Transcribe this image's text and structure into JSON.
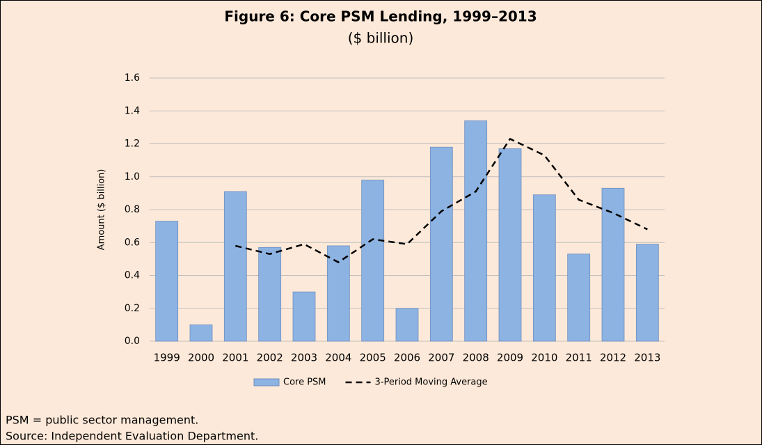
{
  "chart_data": {
    "type": "bar",
    "title": "Figure 6: Core PSM Lending, 1999–2013",
    "subtitle": "($ billion)",
    "y_label": "Amount ($ billion)",
    "categories": [
      "1999",
      "2000",
      "2001",
      "2002",
      "2003",
      "2004",
      "2005",
      "2006",
      "2007",
      "2008",
      "2009",
      "2010",
      "2011",
      "2012",
      "2013"
    ],
    "series": [
      {
        "name": "Core PSM",
        "type": "bar",
        "color": "#8db3e2",
        "values": [
          0.73,
          0.1,
          0.91,
          0.57,
          0.3,
          0.58,
          0.98,
          0.2,
          1.18,
          1.34,
          1.17,
          0.89,
          0.53,
          0.93,
          0.59
        ]
      },
      {
        "name": "3-Period Moving Average",
        "type": "line",
        "color": "#000000",
        "values": [
          null,
          null,
          0.58,
          0.53,
          0.59,
          0.48,
          0.62,
          0.59,
          0.79,
          0.91,
          1.23,
          1.13,
          0.86,
          0.78,
          0.68
        ]
      }
    ],
    "ylim": [
      0,
      1.6
    ],
    "yticks": [
      {
        "value": 0,
        "label": "0.0"
      },
      0.2,
      0.4,
      0.6,
      0.8,
      {
        "value": 1,
        "label": "1.0"
      },
      1.2,
      1.4,
      1.6
    ],
    "grid": true,
    "legend": "bottom",
    "notes": [
      "PSM = public sector management.",
      "Source: Independent Evaluation Department."
    ]
  }
}
